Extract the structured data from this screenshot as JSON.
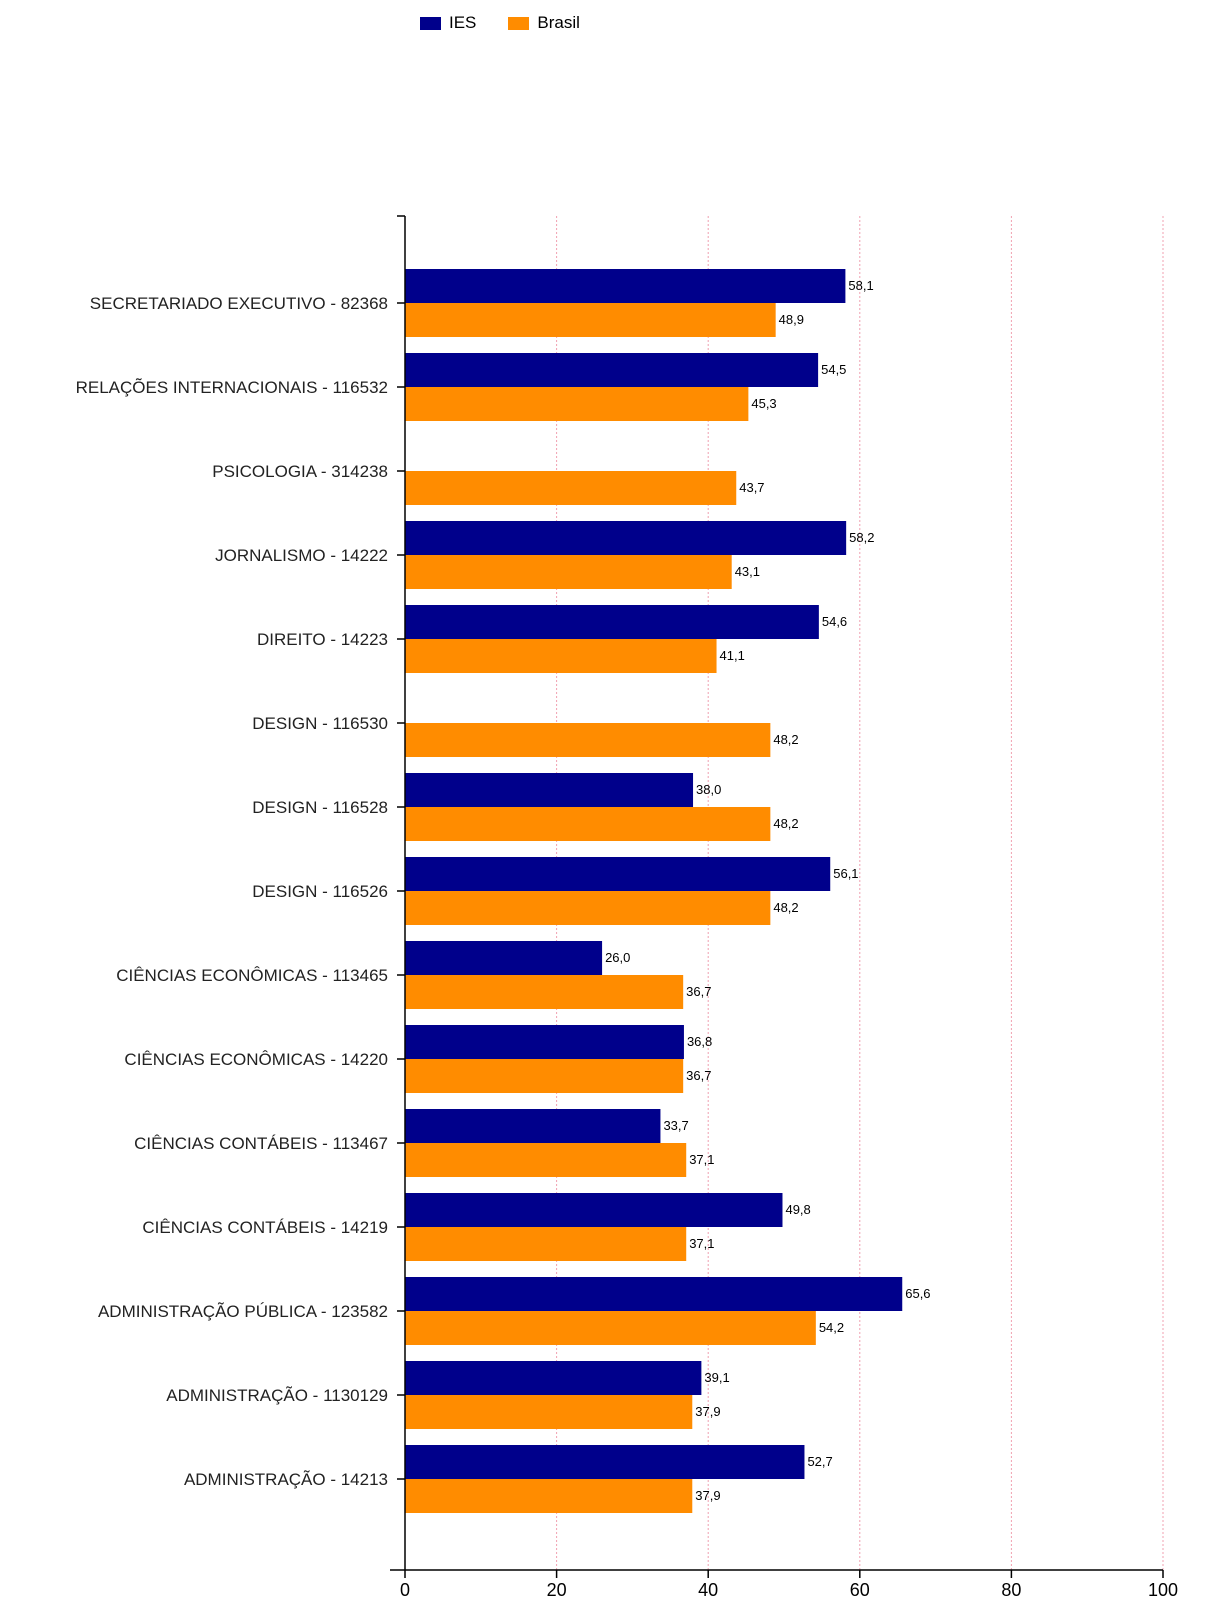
{
  "legend": [
    {
      "name": "IES",
      "color": "#00008B"
    },
    {
      "name": "Brasil",
      "color": "#FF8C00"
    }
  ],
  "chart_data": {
    "type": "bar",
    "orientation": "horizontal",
    "title": "",
    "xlabel": "",
    "ylabel": "",
    "xlim": [
      0,
      100
    ],
    "xticks": [
      0,
      20,
      40,
      60,
      80,
      100
    ],
    "grid": "vertical dotted",
    "legend_position": "top",
    "categories": [
      "SECRETARIADO EXECUTIVO - 82368",
      "RELAÇÕES INTERNACIONAIS - 116532",
      "PSICOLOGIA - 314238",
      "JORNALISMO - 14222",
      "DIREITO - 14223",
      "DESIGN - 116530",
      "DESIGN - 116528",
      "DESIGN - 116526",
      "CIÊNCIAS ECONÔMICAS - 113465",
      "CIÊNCIAS ECONÔMICAS - 14220",
      "CIÊNCIAS CONTÁBEIS - 113467",
      "CIÊNCIAS CONTÁBEIS - 14219",
      "ADMINISTRAÇÃO PÚBLICA - 123582",
      "ADMINISTRAÇÃO - 1130129",
      "ADMINISTRAÇÃO - 14213"
    ],
    "series": [
      {
        "name": "IES",
        "color": "#00008B",
        "values": [
          58.1,
          54.5,
          null,
          58.2,
          54.6,
          null,
          38.0,
          56.1,
          26.0,
          36.8,
          33.7,
          49.8,
          65.6,
          39.1,
          52.7
        ],
        "labels": [
          "58,1",
          "54,5",
          "",
          "58,2",
          "54,6",
          "",
          "38,0",
          "56,1",
          "26,0",
          "36,8",
          "33,7",
          "49,8",
          "65,6",
          "39,1",
          "52,7"
        ]
      },
      {
        "name": "Brasil",
        "color": "#FF8C00",
        "values": [
          48.9,
          45.3,
          43.7,
          43.1,
          41.1,
          48.2,
          48.2,
          48.2,
          36.7,
          36.7,
          37.1,
          37.1,
          54.2,
          37.9,
          37.9
        ],
        "labels": [
          "48,9",
          "45,3",
          "43,7",
          "43,1",
          "41,1",
          "48,2",
          "48,2",
          "48,2",
          "36,7",
          "36,7",
          "37,1",
          "37,1",
          "54,2",
          "37,9",
          "37,9"
        ]
      }
    ]
  }
}
